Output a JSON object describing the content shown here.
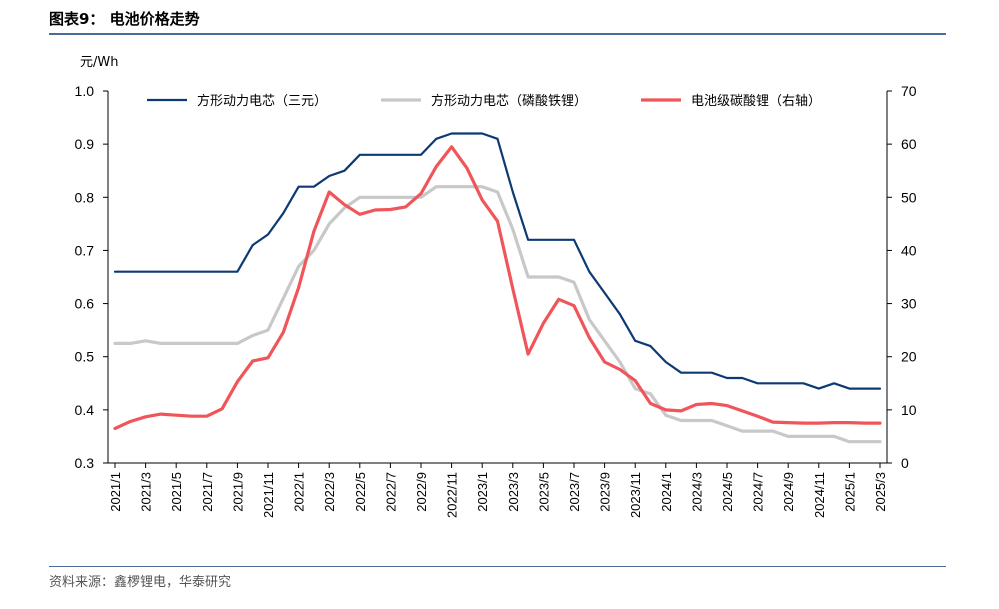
{
  "figure": {
    "title": "图表9： 电池价格走势",
    "source": "资料来源：鑫椤锂电，华泰研究"
  },
  "chart_data": {
    "type": "line",
    "title": "",
    "ylabel": "元/Wh",
    "y2label": "",
    "ylim": [
      0.3,
      1.0
    ],
    "yticks": [
      "0.3",
      "0.4",
      "0.5",
      "0.6",
      "0.7",
      "0.8",
      "0.9",
      "1.0"
    ],
    "y2lim": [
      0,
      70
    ],
    "y2ticks": [
      "0",
      "10",
      "20",
      "30",
      "40",
      "50",
      "60",
      "70"
    ],
    "grid": false,
    "legend_position": "top",
    "x": [
      "2021/1",
      "2021/2",
      "2021/3",
      "2021/4",
      "2021/5",
      "2021/6",
      "2021/7",
      "2021/8",
      "2021/9",
      "2021/10",
      "2021/11",
      "2021/12",
      "2022/1",
      "2022/2",
      "2022/3",
      "2022/4",
      "2022/5",
      "2022/6",
      "2022/7",
      "2022/8",
      "2022/9",
      "2022/10",
      "2022/11",
      "2022/12",
      "2023/1",
      "2023/2",
      "2023/3",
      "2023/4",
      "2023/5",
      "2023/6",
      "2023/7",
      "2023/8",
      "2023/9",
      "2023/10",
      "2023/11",
      "2023/12",
      "2024/1",
      "2024/2",
      "2024/3",
      "2024/4",
      "2024/5",
      "2024/6",
      "2024/7",
      "2024/8",
      "2024/9",
      "2024/10",
      "2024/11",
      "2024/12",
      "2025/1",
      "2025/2",
      "2025/3"
    ],
    "xtick_labels": [
      "2021/1",
      "2021/3",
      "2021/5",
      "2021/7",
      "2021/9",
      "2021/11",
      "2022/1",
      "2022/3",
      "2022/5",
      "2022/7",
      "2022/9",
      "2022/11",
      "2023/1",
      "2023/3",
      "2023/5",
      "2023/7",
      "2023/9",
      "2023/11",
      "2024/1",
      "2024/3",
      "2024/5",
      "2024/7",
      "2024/9",
      "2024/11",
      "2025/1",
      "2025/3"
    ],
    "series": [
      {
        "name": "方形动力电芯（三元）",
        "axis": "left",
        "color": "#0d3a73",
        "values": [
          0.66,
          0.66,
          0.66,
          0.66,
          0.66,
          0.66,
          0.66,
          0.66,
          0.66,
          0.71,
          0.73,
          0.77,
          0.82,
          0.82,
          0.84,
          0.85,
          0.88,
          0.88,
          0.88,
          0.88,
          0.88,
          0.91,
          0.92,
          0.92,
          0.92,
          0.91,
          0.81,
          0.72,
          0.72,
          0.72,
          0.72,
          0.66,
          0.62,
          0.58,
          0.53,
          0.52,
          0.49,
          0.47,
          0.47,
          0.47,
          0.46,
          0.46,
          0.45,
          0.45,
          0.45,
          0.45,
          0.44,
          0.45,
          0.44,
          0.44,
          0.44
        ]
      },
      {
        "name": "方形动力电芯（磷酸铁锂）",
        "axis": "left",
        "color": "#c8c8c8",
        "values": [
          0.525,
          0.525,
          0.53,
          0.525,
          0.525,
          0.525,
          0.525,
          0.525,
          0.525,
          0.54,
          0.55,
          0.61,
          0.67,
          0.7,
          0.75,
          0.78,
          0.8,
          0.8,
          0.8,
          0.8,
          0.8,
          0.82,
          0.82,
          0.82,
          0.82,
          0.81,
          0.74,
          0.65,
          0.65,
          0.65,
          0.64,
          0.57,
          0.53,
          0.49,
          0.44,
          0.43,
          0.39,
          0.38,
          0.38,
          0.38,
          0.37,
          0.36,
          0.36,
          0.36,
          0.35,
          0.35,
          0.35,
          0.35,
          0.34,
          0.34,
          0.34
        ]
      },
      {
        "name": "电池级碳酸锂（右轴）",
        "axis": "right",
        "color": "#f0555a",
        "values": [
          6.5,
          7.8,
          8.7,
          9.2,
          9.0,
          8.8,
          8.8,
          10.2,
          15.3,
          19.2,
          19.8,
          24.6,
          33.0,
          43.6,
          51.0,
          48.6,
          46.8,
          47.6,
          47.7,
          48.2,
          50.7,
          55.8,
          59.5,
          55.5,
          49.5,
          45.5,
          32.8,
          20.5,
          26.3,
          30.8,
          29.6,
          23.6,
          19.0,
          17.6,
          15.5,
          11.2,
          10.0,
          9.8,
          11.0,
          11.2,
          10.8,
          9.8,
          8.8,
          7.7,
          7.6,
          7.5,
          7.5,
          7.6,
          7.6,
          7.5,
          7.5
        ]
      }
    ]
  }
}
